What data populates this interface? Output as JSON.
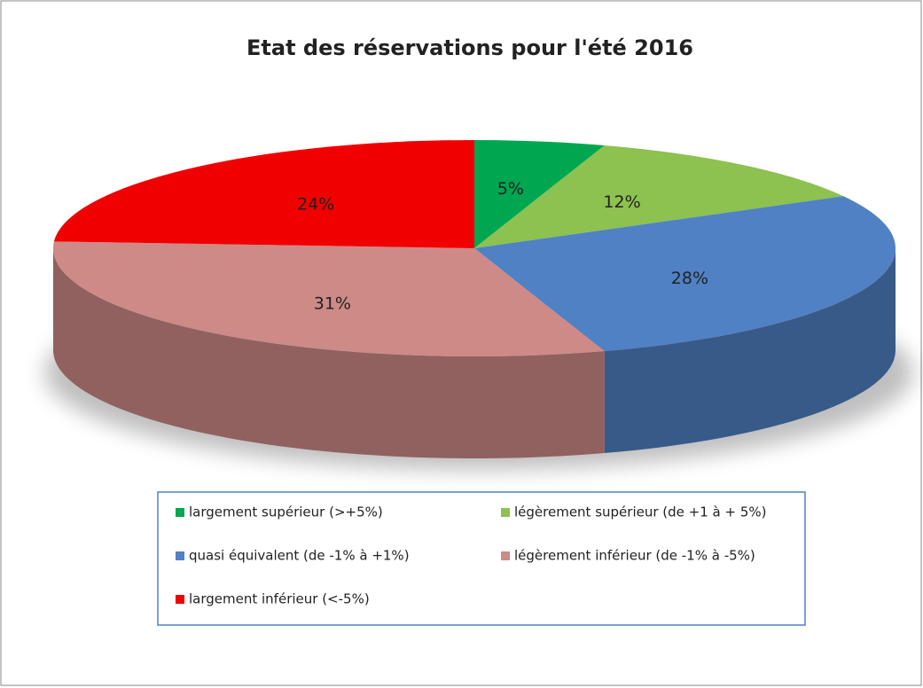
{
  "chart_data": {
    "type": "pie",
    "title": "Etat des réservations pour l'été 2016",
    "categories": [
      "largement supérieur (>+5%)",
      "légèrement supérieur (de +1 à + 5%)",
      "quasi équivalent (de -1% à +1%)",
      "légèrement inférieur (de -1% à -5%)",
      "largement inférieur (<-5%)"
    ],
    "values": [
      5,
      12,
      28,
      31,
      24
    ],
    "value_labels": [
      "5%",
      "12%",
      "28%",
      "31%",
      "24%"
    ],
    "colors": [
      "#00a650",
      "#8dc150",
      "#4f81c4",
      "#cd8a87",
      "#f00000"
    ],
    "legend": "bottom"
  }
}
